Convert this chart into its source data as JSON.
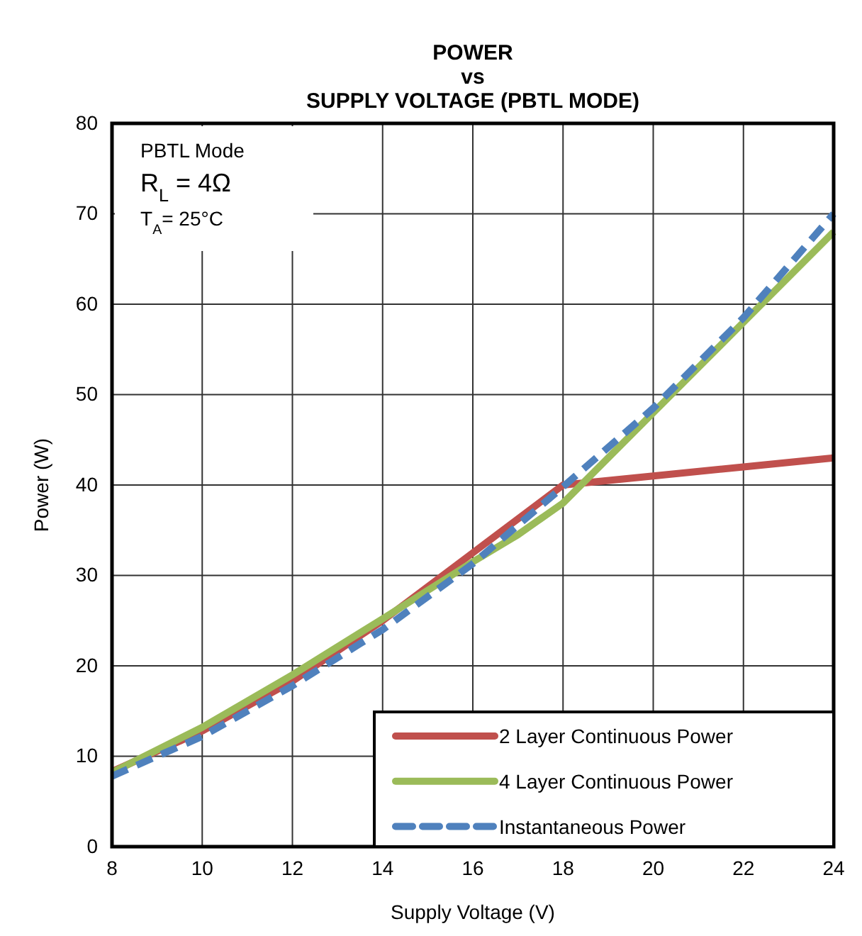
{
  "chart_data": {
    "type": "line",
    "title": "POWER\nvs\nSUPPLY VOLTAGE (PBTL MODE)",
    "xlabel": "Supply Voltage (V)",
    "ylabel": "Power (W)",
    "x": [
      8,
      10,
      12,
      14,
      16,
      18,
      20,
      22,
      24
    ],
    "series": [
      {
        "name": "2 Layer Continuous Power",
        "color": "#c0504d",
        "values": [
          8.3,
          12.8,
          18.3,
          25,
          32.5,
          40,
          41,
          42,
          43
        ],
        "line_style": "solid"
      },
      {
        "name": "4 Layer Continuous Power",
        "color": "#9bbb59",
        "x": [
          8,
          10,
          12,
          14,
          16,
          17,
          18,
          20,
          22,
          24
        ],
        "values": [
          8.2,
          13.2,
          19,
          25.2,
          31.5,
          34.5,
          38,
          48,
          58,
          68
        ],
        "line_style": "solid"
      },
      {
        "name": "Instantaneous Power",
        "color": "#4f81bd",
        "values": [
          7.8,
          12.2,
          17.8,
          24,
          31.3,
          39.8,
          48.5,
          58.5,
          70
        ],
        "line_style": "dashed"
      }
    ],
    "xlim": [
      8,
      24
    ],
    "xticks": [
      8,
      10,
      12,
      14,
      16,
      18,
      20,
      22,
      24
    ],
    "ylim": [
      0,
      80
    ],
    "yticks": [
      0,
      10,
      20,
      30,
      40,
      50,
      60,
      70,
      80
    ],
    "grid": true,
    "legend": "bottom right",
    "marker": "none",
    "annotations": [
      "PBTL Mode",
      "R$_{L}$ = 4Ω",
      "T$_{A}$= 25°C"
    ]
  }
}
